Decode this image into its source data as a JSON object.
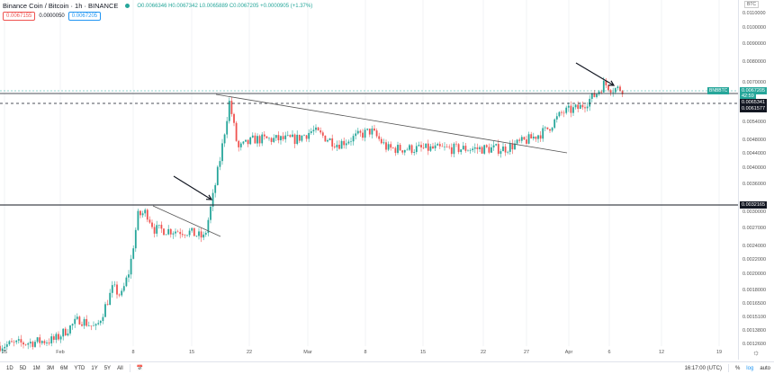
{
  "header": {
    "title": "Binance Coin / Bitcoin · 1h · BINANCE",
    "ohlc": "O0.0066346 H0.0067342 L0.0065889 C0.0067205 +0.0000905 (+1.37%)",
    "sell": "0.0067155",
    "spread": "0.0000050",
    "buy": "0.0067205"
  },
  "price_axis": {
    "currency": "BTC",
    "scale": "log",
    "labels": [
      "0.0110000",
      "0.0100000",
      "0.0090000",
      "0.0080000",
      "0.0070000",
      "0.0054000",
      "0.0048000",
      "0.0044000",
      "0.0040000",
      "0.0036000",
      "0.0030000",
      "0.0027000",
      "0.0024000",
      "0.0022000",
      "0.0020000",
      "0.0018000",
      "0.0016500",
      "0.0015100",
      "0.0013800",
      "0.0012600"
    ],
    "symbol_tag": "BNBBTC",
    "last_price": "0.0067205",
    "countdown": "42:59",
    "level_tags": [
      "0.0065341",
      "0.0061577",
      "0.0032165"
    ]
  },
  "time_axis": {
    "labels": [
      "25",
      "Feb",
      "8",
      "15",
      "22",
      "Mar",
      "8",
      "15",
      "22",
      "27",
      "Apr",
      "6",
      "12",
      "19"
    ]
  },
  "toolbar": {
    "ranges": [
      "1D",
      "5D",
      "1M",
      "3M",
      "6M",
      "YTD",
      "1Y",
      "5Y",
      "All"
    ],
    "time": "16:17:00 (UTC)",
    "percent": "%",
    "log": "log",
    "auto": "auto"
  },
  "colors": {
    "up": "#26a69a",
    "down": "#ef5350",
    "last": "#26a69a"
  },
  "chart_data": {
    "type": "candlestick",
    "scale": "log",
    "price_path": [
      [
        "Jan 24",
        0.00125
      ],
      [
        "Jan 31",
        0.0013
      ],
      [
        "Feb 3",
        0.00149
      ],
      [
        "Feb 5",
        0.0014
      ],
      [
        "Feb 7",
        0.00183
      ],
      [
        "Feb 8",
        0.00173
      ],
      [
        "Feb 9",
        0.00206
      ],
      [
        "Feb 10",
        0.00293
      ],
      [
        "Feb 11",
        0.003
      ],
      [
        "Feb 12",
        0.00268
      ],
      [
        "Feb 16",
        0.00264
      ],
      [
        "Feb 18",
        0.00253
      ],
      [
        "Feb 19",
        0.0033
      ],
      [
        "Feb 20",
        0.00442
      ],
      [
        "Feb 21",
        0.0062
      ],
      [
        "Feb 22",
        0.00454
      ],
      [
        "Feb 24",
        0.00483
      ],
      [
        "Mar 1",
        0.00483
      ],
      [
        "Mar 3",
        0.00511
      ],
      [
        "Mar 6",
        0.00468
      ],
      [
        "Mar 10",
        0.00511
      ],
      [
        "Mar 12",
        0.00454
      ],
      [
        "Mar 20",
        0.00454
      ],
      [
        "Mar 26",
        0.00454
      ],
      [
        "Mar 29",
        0.00483
      ],
      [
        "Mar 31",
        0.00511
      ],
      [
        "Apr 2",
        0.00576
      ],
      [
        "Apr 4",
        0.00593
      ],
      [
        "Apr 6",
        0.00648
      ],
      [
        "Apr 7",
        0.00696
      ],
      [
        "Apr 8",
        0.00672
      ]
    ]
  }
}
